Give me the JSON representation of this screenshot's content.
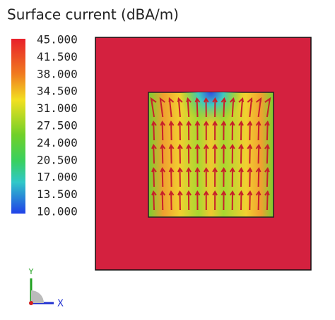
{
  "title": "Surface current (dBA/m)",
  "legend": {
    "labels": [
      "45.000",
      "41.500",
      "38.000",
      "34.500",
      "31.000",
      "27.500",
      "24.000",
      "20.500",
      "17.000",
      "13.500",
      "10.000"
    ]
  },
  "axes": {
    "y": "Y",
    "x": "X"
  }
}
